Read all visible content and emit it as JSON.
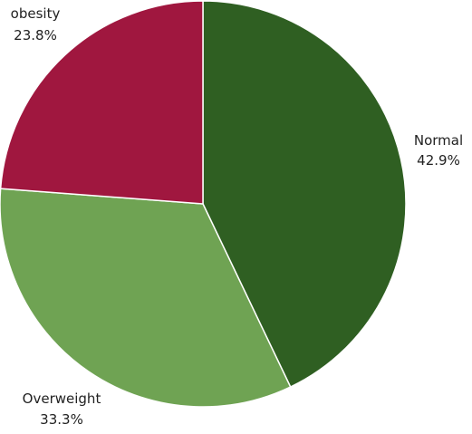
{
  "chart_data": {
    "type": "pie",
    "title": "",
    "slices": [
      {
        "label": "Normal",
        "value": 42.9,
        "value_text": "42.9%",
        "color": "#2f5f22"
      },
      {
        "label": "Overweight",
        "value": 33.3,
        "value_text": "33.3%",
        "color": "#6fa353"
      },
      {
        "label": "obesity",
        "value": 23.8,
        "value_text": "23.8%",
        "color": "#a0173f"
      }
    ],
    "start_angle_deg": 0,
    "direction": "clockwise",
    "legend": "none",
    "labels_position": "outside"
  }
}
